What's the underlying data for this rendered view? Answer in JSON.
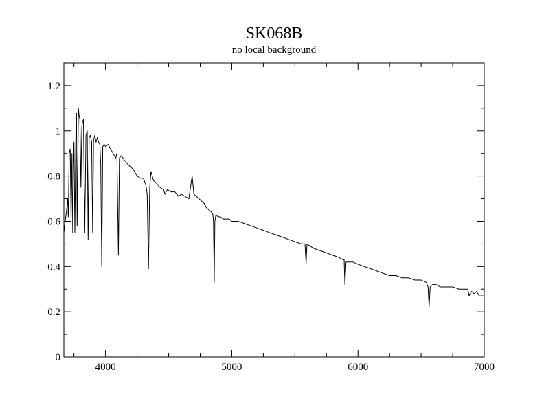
{
  "chart_data": {
    "type": "line",
    "title": "SK068B",
    "subtitle": "no local background",
    "xlabel": "",
    "ylabel": "",
    "xlim": [
      3670,
      7000
    ],
    "ylim": [
      0,
      1.3
    ],
    "x_ticks": [
      4000,
      5000,
      6000,
      7000
    ],
    "y_ticks": [
      0,
      0.2,
      0.4,
      0.6,
      0.8,
      1,
      1.2
    ],
    "x_tick_labels": [
      "4000",
      "5000",
      "6000",
      "7000"
    ],
    "y_tick_labels": [
      "0",
      "0.2",
      "0.4",
      "0.6",
      "0.8",
      "1",
      "1.2"
    ],
    "x_minor_step": 250,
    "y_minor_step": 0.1,
    "grid": false,
    "line_color": "#000000",
    "series": [
      {
        "x": [
          3670,
          3680,
          3690,
          3700,
          3705,
          3712,
          3720,
          3727,
          3734,
          3740,
          3745,
          3750,
          3757,
          3765,
          3770,
          3775,
          3785,
          3790,
          3797,
          3805,
          3812,
          3818,
          3825,
          3835,
          3845,
          3855,
          3862,
          3870,
          3880,
          3890,
          3898,
          3905,
          3915,
          3925,
          3935,
          3945,
          3955,
          3962,
          3970,
          3978,
          3990,
          4000,
          4020,
          4040,
          4060,
          4080,
          4090,
          4102,
          4110,
          4125,
          4150,
          4180,
          4200,
          4220,
          4250,
          4280,
          4300,
          4320,
          4330,
          4340,
          4350,
          4360,
          4380,
          4400,
          4430,
          4460,
          4471,
          4490,
          4520,
          4550,
          4580,
          4600,
          4630,
          4660,
          4686,
          4700,
          4720,
          4740,
          4760,
          4780,
          4800,
          4820,
          4840,
          4850,
          4855,
          4861,
          4866,
          4875,
          4890,
          4910,
          4930,
          4950,
          4980,
          5000,
          5050,
          5100,
          5150,
          5200,
          5250,
          5300,
          5350,
          5400,
          5450,
          5500,
          5550,
          5580,
          5589,
          5596,
          5620,
          5650,
          5700,
          5750,
          5800,
          5850,
          5880,
          5890,
          5896,
          5905,
          5930,
          5960,
          6000,
          6050,
          6100,
          6150,
          6200,
          6250,
          6300,
          6350,
          6400,
          6450,
          6500,
          6540,
          6555,
          6563,
          6572,
          6590,
          6620,
          6650,
          6700,
          6750,
          6800,
          6850,
          6870,
          6880,
          6900,
          6920,
          6940,
          6960,
          6980,
          7000
        ],
        "y": [
          0.55,
          0.6,
          0.64,
          0.7,
          0.62,
          0.9,
          0.92,
          0.6,
          0.9,
          0.55,
          0.85,
          0.95,
          0.55,
          1.0,
          1.08,
          0.58,
          1.1,
          1.07,
          1.05,
          0.75,
          1.02,
          1.04,
          1.05,
          0.55,
          0.98,
          1.0,
          0.52,
          0.97,
          0.98,
          0.95,
          0.55,
          0.96,
          0.98,
          0.95,
          0.97,
          0.95,
          0.94,
          0.85,
          0.4,
          0.93,
          0.94,
          0.93,
          0.94,
          0.92,
          0.9,
          0.88,
          0.9,
          0.45,
          0.88,
          0.89,
          0.87,
          0.85,
          0.84,
          0.83,
          0.8,
          0.79,
          0.79,
          0.76,
          0.72,
          0.39,
          0.75,
          0.82,
          0.78,
          0.77,
          0.75,
          0.74,
          0.72,
          0.74,
          0.73,
          0.73,
          0.71,
          0.72,
          0.71,
          0.7,
          0.8,
          0.72,
          0.71,
          0.7,
          0.69,
          0.68,
          0.66,
          0.65,
          0.64,
          0.63,
          0.6,
          0.33,
          0.6,
          0.63,
          0.62,
          0.62,
          0.61,
          0.61,
          0.61,
          0.6,
          0.6,
          0.59,
          0.58,
          0.57,
          0.56,
          0.55,
          0.54,
          0.53,
          0.52,
          0.51,
          0.5,
          0.5,
          0.41,
          0.5,
          0.49,
          0.48,
          0.47,
          0.46,
          0.45,
          0.44,
          0.43,
          0.43,
          0.32,
          0.42,
          0.42,
          0.42,
          0.41,
          0.4,
          0.39,
          0.38,
          0.37,
          0.36,
          0.36,
          0.35,
          0.35,
          0.34,
          0.34,
          0.33,
          0.31,
          0.22,
          0.31,
          0.32,
          0.32,
          0.31,
          0.31,
          0.31,
          0.3,
          0.3,
          0.3,
          0.27,
          0.29,
          0.28,
          0.29,
          0.27,
          0.27,
          0.27
        ]
      }
    ]
  }
}
